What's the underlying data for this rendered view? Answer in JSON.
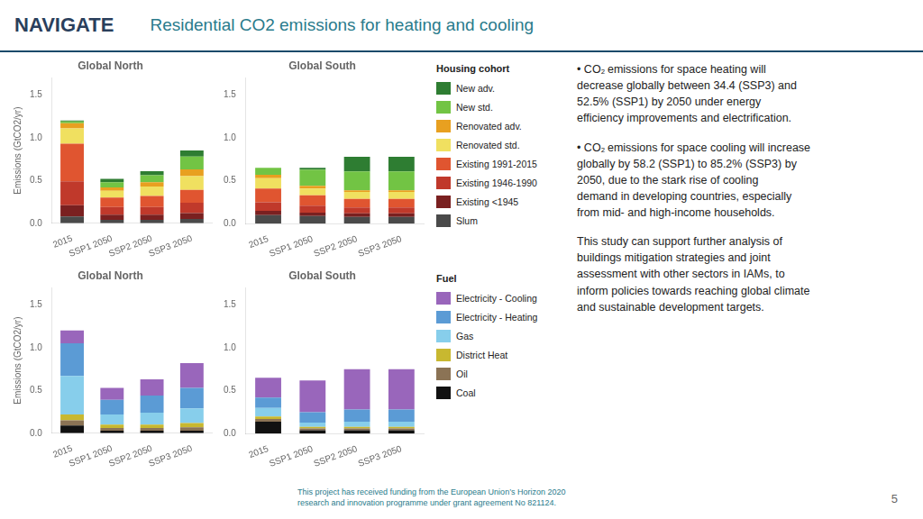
{
  "title": "Residential CO2 emissions for heating and cooling",
  "annotations": [
    "NAVIGATE",
    "• CO₂ emissions for space heating will\ndecrease globally between 34.4 (SSP3) and\n52.5% (SSP1) by 2050 under energy\nefficiency improvements and electrification.",
    "• CO₂ emissions for space cooling will increase\nglobally by 58.2 (SSP1) to 85.2% (SSP3) by\n2050, due to the stark rise of cooling\ndemand in developing countries, especially\nfrom mid- and high-income households.",
    "This study can support further analysis of\nbuildings mitigation strategies and joint\nassessment with other sectors in IAMs, to\ninform policies towards reaching global climate\nand sustainable development targets.",
    "This project has received funding from the European Union’s Horizon 2020\nresearch and innovation programme under grant agreement No 821124.",
    "5"
  ],
  "chart_data": [
    {
      "type": "bar",
      "stacked": true,
      "grid": false,
      "title": "Global North",
      "ylabel": "Emissions (GtCO2/yr)",
      "categories": [
        "2015",
        "SSP1 2050",
        "SSP2 2050",
        "SSP3 2050"
      ],
      "ylim": [
        0,
        1.7
      ],
      "yticks": [
        {
          "value": 0,
          "label": "0.0"
        },
        0.5,
        {
          "value": 1,
          "label": "1.0"
        },
        1.5
      ],
      "series": [
        {
          "name": "Slum",
          "color": "#4a4a4a",
          "values": [
            0.08,
            0.04,
            0.04,
            0.05
          ]
        },
        {
          "name": "Existing <1945",
          "color": "#7a2020",
          "values": [
            0.13,
            0.06,
            0.06,
            0.07
          ]
        },
        {
          "name": "Existing 1946-1990",
          "color": "#c0392b",
          "values": [
            0.28,
            0.09,
            0.09,
            0.12
          ]
        },
        {
          "name": "Existing 1991-2015",
          "color": "#e05530",
          "values": [
            0.44,
            0.11,
            0.13,
            0.15
          ]
        },
        {
          "name": "Renovated std.",
          "color": "#f0e060",
          "values": [
            0.18,
            0.08,
            0.11,
            0.16
          ]
        },
        {
          "name": "Renovated adv.",
          "color": "#e8a020",
          "values": [
            0.06,
            0.04,
            0.05,
            0.08
          ]
        },
        {
          "name": "New std.",
          "color": "#72c444",
          "values": [
            0.02,
            0.06,
            0.08,
            0.15
          ]
        },
        {
          "name": "New adv.",
          "color": "#2e7d32",
          "values": [
            0.01,
            0.04,
            0.05,
            0.07
          ]
        }
      ]
    },
    {
      "type": "bar",
      "stacked": true,
      "grid": false,
      "title": "Global South",
      "legend": "right",
      "legend_title": "Housing cohort",
      "categories": [
        "2015",
        "SSP1 2050",
        "SSP2 2050",
        "SSP3 2050"
      ],
      "ylim": [
        0,
        1.7
      ],
      "yticks": [
        {
          "value": 0,
          "label": "0.0"
        },
        0.5,
        {
          "value": 1,
          "label": "1.0"
        },
        1.5
      ],
      "series": [
        {
          "name": "Slum",
          "color": "#4a4a4a",
          "values": [
            0.1,
            0.09,
            0.08,
            0.08
          ]
        },
        {
          "name": "Existing <1945",
          "color": "#7a2020",
          "values": [
            0.05,
            0.04,
            0.04,
            0.04
          ]
        },
        {
          "name": "Existing 1946-1990",
          "color": "#c0392b",
          "values": [
            0.1,
            0.08,
            0.07,
            0.07
          ]
        },
        {
          "name": "Existing 1991-2015",
          "color": "#e05530",
          "values": [
            0.16,
            0.12,
            0.1,
            0.1
          ]
        },
        {
          "name": "Renovated std.",
          "color": "#f0e060",
          "values": [
            0.12,
            0.08,
            0.08,
            0.08
          ]
        },
        {
          "name": "Renovated adv.",
          "color": "#e8a020",
          "values": [
            0.04,
            0.03,
            0.02,
            0.02
          ]
        },
        {
          "name": "New std.",
          "color": "#72c444",
          "values": [
            0.08,
            0.19,
            0.22,
            0.22
          ]
        },
        {
          "name": "New adv.",
          "color": "#2e7d32",
          "values": [
            0.0,
            0.02,
            0.17,
            0.17
          ]
        }
      ]
    },
    {
      "type": "bar",
      "stacked": true,
      "grid": false,
      "title": "Global North",
      "ylabel": "Emissions (GtCO2/yr)",
      "categories": [
        "2015",
        "SSP1 2050",
        "SSP2 2050",
        "SSP3 2050"
      ],
      "ylim": [
        0,
        1.7
      ],
      "yticks": [
        {
          "value": 0,
          "label": "0.0"
        },
        0.5,
        {
          "value": 1,
          "label": "1.0"
        },
        1.5
      ],
      "series": [
        {
          "name": "Coal",
          "color": "#111111",
          "values": [
            0.09,
            0.03,
            0.03,
            0.03
          ]
        },
        {
          "name": "Oil",
          "color": "#8b7355",
          "values": [
            0.06,
            0.03,
            0.03,
            0.04
          ]
        },
        {
          "name": "District Heat",
          "color": "#c8b830",
          "values": [
            0.07,
            0.04,
            0.04,
            0.05
          ]
        },
        {
          "name": "Gas",
          "color": "#87ceeb",
          "values": [
            0.45,
            0.12,
            0.14,
            0.17
          ]
        },
        {
          "name": "Electricity - Heating",
          "color": "#5b9bd5",
          "values": [
            0.38,
            0.17,
            0.2,
            0.24
          ]
        },
        {
          "name": "Electricity - Cooling",
          "color": "#9966bb",
          "values": [
            0.15,
            0.14,
            0.19,
            0.29
          ]
        }
      ]
    },
    {
      "type": "bar",
      "stacked": true,
      "grid": false,
      "title": "Global South",
      "legend": "right",
      "legend_title": "Fuel",
      "categories": [
        "2015",
        "SSP1 2050",
        "SSP2 2050",
        "SSP3 2050"
      ],
      "ylim": [
        0,
        1.7
      ],
      "yticks": [
        {
          "value": 0,
          "label": "0.0"
        },
        0.5,
        {
          "value": 1,
          "label": "1.0"
        },
        1.5
      ],
      "series": [
        {
          "name": "Coal",
          "color": "#111111",
          "values": [
            0.14,
            0.04,
            0.04,
            0.04
          ]
        },
        {
          "name": "Oil",
          "color": "#8b7355",
          "values": [
            0.03,
            0.02,
            0.02,
            0.02
          ]
        },
        {
          "name": "District Heat",
          "color": "#c8b830",
          "values": [
            0.03,
            0.02,
            0.02,
            0.02
          ]
        },
        {
          "name": "Gas",
          "color": "#87ceeb",
          "values": [
            0.1,
            0.05,
            0.06,
            0.06
          ]
        },
        {
          "name": "Electricity - Heating",
          "color": "#5b9bd5",
          "values": [
            0.12,
            0.12,
            0.14,
            0.14
          ]
        },
        {
          "name": "Electricity - Cooling",
          "color": "#9966bb",
          "values": [
            0.23,
            0.37,
            0.47,
            0.47
          ]
        }
      ]
    }
  ]
}
